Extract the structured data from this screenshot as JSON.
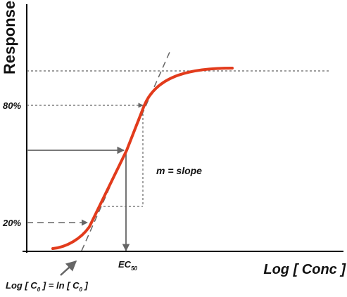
{
  "y_axis_title": "Response",
  "x_axis_title": "Log [ Conc ]",
  "level_labels": {
    "high": "80%",
    "low": "20%"
  },
  "slope_label": "m = slope",
  "ec50": {
    "main": "EC",
    "subscript": "50"
  },
  "c0_label": {
    "part1": "Log [ C",
    "sub1": "0",
    "part2": " ] = ln [ C",
    "sub2": "0",
    "part3": " ]"
  },
  "colors": {
    "curve": "#e23b1c",
    "guide": "#666666",
    "axis": "#000000",
    "text": "#111111"
  }
}
